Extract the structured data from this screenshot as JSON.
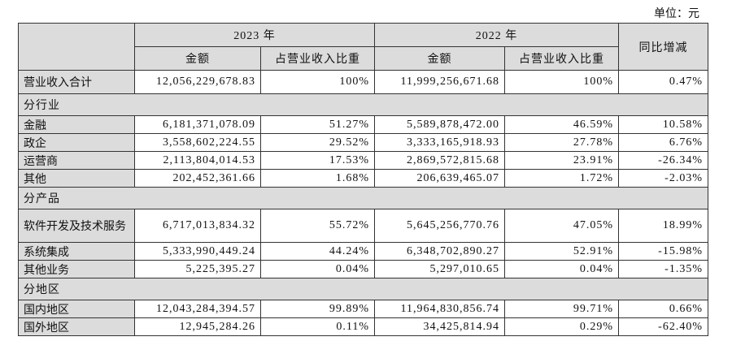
{
  "unit": "单位：元",
  "header": {
    "year_2023": "2023 年",
    "year_2022": "2022 年",
    "yoy": "同比增减",
    "columns": [
      "金额",
      "占营业收入比重",
      "金额",
      "占营业收入比重"
    ]
  },
  "rows": [
    {
      "label": "营业收入合计",
      "cells": [
        "12,056,229,678.83",
        "100%",
        "11,999,256,671.68",
        "100%",
        "0.47%"
      ]
    },
    {
      "section": "分行业"
    },
    {
      "label": "金融",
      "cells": [
        "6,181,371,078.09",
        "51.27%",
        "5,589,878,472.00",
        "46.59%",
        "10.58%"
      ]
    },
    {
      "label": "政企",
      "cells": [
        "3,558,602,224.55",
        "29.52%",
        "3,333,165,918.93",
        "27.78%",
        "6.76%"
      ]
    },
    {
      "label": "运营商",
      "cells": [
        "2,113,804,014.53",
        "17.53%",
        "2,869,572,815.68",
        "23.91%",
        "-26.34%"
      ]
    },
    {
      "label": "其他",
      "cells": [
        "202,452,361.66",
        "1.68%",
        "206,639,465.07",
        "1.72%",
        "-2.03%"
      ]
    },
    {
      "section": "分产品"
    },
    {
      "label": "软件开发及技术服务",
      "cells": [
        "6,717,013,834.32",
        "55.72%",
        "5,645,256,770.76",
        "47.05%",
        "18.99%"
      ]
    },
    {
      "label": "系统集成",
      "cells": [
        "5,333,990,449.24",
        "44.24%",
        "6,348,702,890.27",
        "52.91%",
        "-15.98%"
      ]
    },
    {
      "label": "其他业务",
      "cells": [
        "5,225,395.27",
        "0.04%",
        "5,297,010.65",
        "0.04%",
        "-1.35%"
      ]
    },
    {
      "section": "分地区"
    },
    {
      "label": "国内地区",
      "cells": [
        "12,043,284,394.57",
        "99.89%",
        "11,964,830,856.74",
        "99.71%",
        "0.66%"
      ]
    },
    {
      "label": "国外地区",
      "cells": [
        "12,945,284.26",
        "0.11%",
        "34,425,814.94",
        "0.29%",
        "-62.40%"
      ]
    }
  ]
}
